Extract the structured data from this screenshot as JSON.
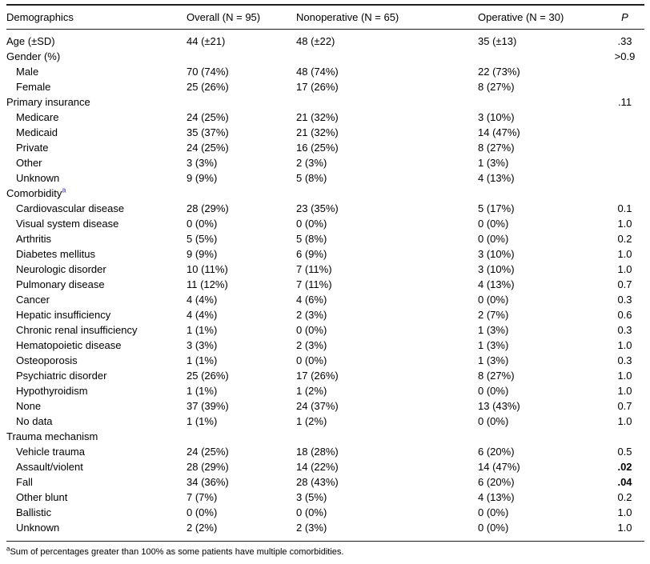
{
  "colors": {
    "background": "#ffffff",
    "text": "#000000",
    "rule": "#1f1f1f",
    "footnote_marker_blue": "#3333cc"
  },
  "table": {
    "columns": [
      {
        "key": "demographics",
        "label": "Demographics",
        "italic": false
      },
      {
        "key": "overall",
        "label": "Overall (N = 95)",
        "italic": false
      },
      {
        "key": "nonoperative",
        "label": "Nonoperative (N = 65)",
        "italic": false
      },
      {
        "key": "operative",
        "label": "Operative (N = 30)",
        "italic": false
      },
      {
        "key": "p",
        "label": "P",
        "italic": true
      }
    ],
    "rows": [
      {
        "label": "Age (±SD)",
        "indent": 0,
        "cells": [
          "44 (±21)",
          "48 (±22)",
          "35 (±13)"
        ],
        "p": ".33",
        "p_bold": false
      },
      {
        "label": "Gender (%)",
        "indent": 0,
        "cells": [
          "",
          "",
          ""
        ],
        "p": ">0.9",
        "p_bold": false
      },
      {
        "label": "Male",
        "indent": 1,
        "cells": [
          "70 (74%)",
          "48 (74%)",
          "22 (73%)"
        ],
        "p": "",
        "p_bold": false
      },
      {
        "label": "Female",
        "indent": 1,
        "cells": [
          "25 (26%)",
          "17 (26%)",
          "8 (27%)"
        ],
        "p": "",
        "p_bold": false
      },
      {
        "label": "Primary insurance",
        "indent": 0,
        "cells": [
          "",
          "",
          ""
        ],
        "p": ".11",
        "p_bold": false
      },
      {
        "label": "Medicare",
        "indent": 1,
        "cells": [
          "24 (25%)",
          "21 (32%)",
          "3 (10%)"
        ],
        "p": "",
        "p_bold": false
      },
      {
        "label": "Medicaid",
        "indent": 1,
        "cells": [
          "35 (37%)",
          "21 (32%)",
          "14 (47%)"
        ],
        "p": "",
        "p_bold": false
      },
      {
        "label": "Private",
        "indent": 1,
        "cells": [
          "24 (25%)",
          "16 (25%)",
          "8 (27%)"
        ],
        "p": "",
        "p_bold": false
      },
      {
        "label": "Other",
        "indent": 1,
        "cells": [
          "3 (3%)",
          "2 (3%)",
          "1 (3%)"
        ],
        "p": "",
        "p_bold": false
      },
      {
        "label": "Unknown",
        "indent": 1,
        "cells": [
          "9 (9%)",
          "5 (8%)",
          "4 (13%)"
        ],
        "p": "",
        "p_bold": false
      },
      {
        "label": "Comorbidity",
        "sup": "a",
        "indent": 0,
        "cells": [
          "",
          "",
          ""
        ],
        "p": "",
        "p_bold": false
      },
      {
        "label": "Cardiovascular disease",
        "indent": 1,
        "cells": [
          "28 (29%)",
          "23 (35%)",
          "5 (17%)"
        ],
        "p": "0.1",
        "p_bold": false
      },
      {
        "label": "Visual system disease",
        "indent": 1,
        "cells": [
          "0 (0%)",
          "0 (0%)",
          "0 (0%)"
        ],
        "p": "1.0",
        "p_bold": false
      },
      {
        "label": "Arthritis",
        "indent": 1,
        "cells": [
          "5 (5%)",
          "5 (8%)",
          "0 (0%)"
        ],
        "p": "0.2",
        "p_bold": false
      },
      {
        "label": "Diabetes mellitus",
        "indent": 1,
        "cells": [
          "9 (9%)",
          "6 (9%)",
          "3 (10%)"
        ],
        "p": "1.0",
        "p_bold": false
      },
      {
        "label": "Neurologic disorder",
        "indent": 1,
        "cells": [
          "10 (11%)",
          "7 (11%)",
          "3 (10%)"
        ],
        "p": "1.0",
        "p_bold": false
      },
      {
        "label": "Pulmonary disease",
        "indent": 1,
        "cells": [
          "11 (12%)",
          "7 (11%)",
          "4 (13%)"
        ],
        "p": "0.7",
        "p_bold": false
      },
      {
        "label": "Cancer",
        "indent": 1,
        "cells": [
          "4 (4%)",
          "4 (6%)",
          "0 (0%)"
        ],
        "p": "0.3",
        "p_bold": false
      },
      {
        "label": "Hepatic insufficiency",
        "indent": 1,
        "cells": [
          "4 (4%)",
          "2 (3%)",
          "2 (7%)"
        ],
        "p": "0.6",
        "p_bold": false
      },
      {
        "label": "Chronic renal insufficiency",
        "indent": 1,
        "cells": [
          "1 (1%)",
          "0 (0%)",
          "1 (3%)"
        ],
        "p": "0.3",
        "p_bold": false
      },
      {
        "label": "Hematopoietic disease",
        "indent": 1,
        "cells": [
          "3 (3%)",
          "2 (3%)",
          "1 (3%)"
        ],
        "p": "1.0",
        "p_bold": false
      },
      {
        "label": "Osteoporosis",
        "indent": 1,
        "cells": [
          "1 (1%)",
          "0 (0%)",
          "1 (3%)"
        ],
        "p": "0.3",
        "p_bold": false
      },
      {
        "label": "Psychiatric disorder",
        "indent": 1,
        "cells": [
          "25 (26%)",
          "17 (26%)",
          "8 (27%)"
        ],
        "p": "1.0",
        "p_bold": false
      },
      {
        "label": "Hypothyroidism",
        "indent": 1,
        "cells": [
          "1 (1%)",
          "1 (2%)",
          "0 (0%)"
        ],
        "p": "1.0",
        "p_bold": false
      },
      {
        "label": "None",
        "indent": 1,
        "cells": [
          "37 (39%)",
          "24 (37%)",
          "13 (43%)"
        ],
        "p": "0.7",
        "p_bold": false
      },
      {
        "label": "No data",
        "indent": 1,
        "cells": [
          "1 (1%)",
          "1 (2%)",
          "0 (0%)"
        ],
        "p": "1.0",
        "p_bold": false
      },
      {
        "label": "Trauma mechanism",
        "indent": 0,
        "cells": [
          "",
          "",
          ""
        ],
        "p": "",
        "p_bold": false
      },
      {
        "label": "Vehicle trauma",
        "indent": 1,
        "cells": [
          "24 (25%)",
          "18 (28%)",
          "6 (20%)"
        ],
        "p": "0.5",
        "p_bold": false
      },
      {
        "label": "Assault/violent",
        "indent": 1,
        "cells": [
          "28 (29%)",
          "14 (22%)",
          "14 (47%)"
        ],
        "p": ".02",
        "p_bold": true
      },
      {
        "label": "Fall",
        "indent": 1,
        "cells": [
          "34 (36%)",
          "28 (43%)",
          "6 (20%)"
        ],
        "p": ".04",
        "p_bold": true
      },
      {
        "label": "Other blunt",
        "indent": 1,
        "cells": [
          "7 (7%)",
          "3 (5%)",
          "4 (13%)"
        ],
        "p": "0.2",
        "p_bold": false
      },
      {
        "label": "Ballistic",
        "indent": 1,
        "cells": [
          "0 (0%)",
          "0 (0%)",
          "0 (0%)"
        ],
        "p": "1.0",
        "p_bold": false
      },
      {
        "label": "Unknown",
        "indent": 1,
        "cells": [
          "2 (2%)",
          "2 (3%)",
          "0 (0%)"
        ],
        "p": "1.0",
        "p_bold": false
      }
    ],
    "footnote": {
      "marker": "a",
      "text": "Sum of percentages greater than 100% as some patients have multiple comorbidities."
    }
  }
}
